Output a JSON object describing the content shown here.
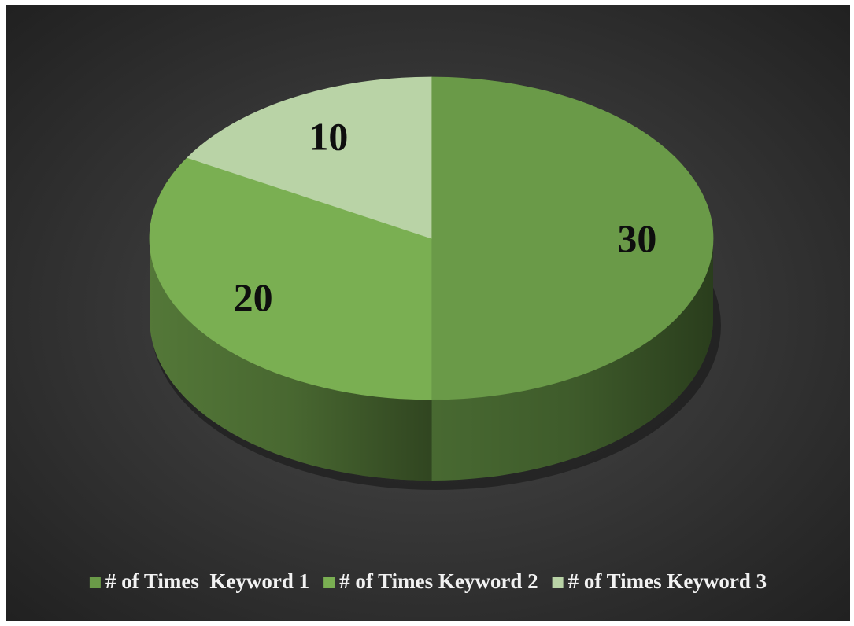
{
  "chart_data": {
    "type": "pie",
    "variant": "3d",
    "slices": [
      {
        "label": "# of Times  Keyword 1",
        "value": 30,
        "data_label": "30",
        "color": "#6a9a48"
      },
      {
        "label": "# of Times Keyword 2",
        "value": 20,
        "data_label": "20",
        "color": "#7aaf52"
      },
      {
        "label": "# of Times Keyword 3",
        "value": 10,
        "data_label": "10",
        "color": "#b9d3a6"
      }
    ],
    "legend_position": "bottom",
    "background": "#3c3c3c"
  }
}
